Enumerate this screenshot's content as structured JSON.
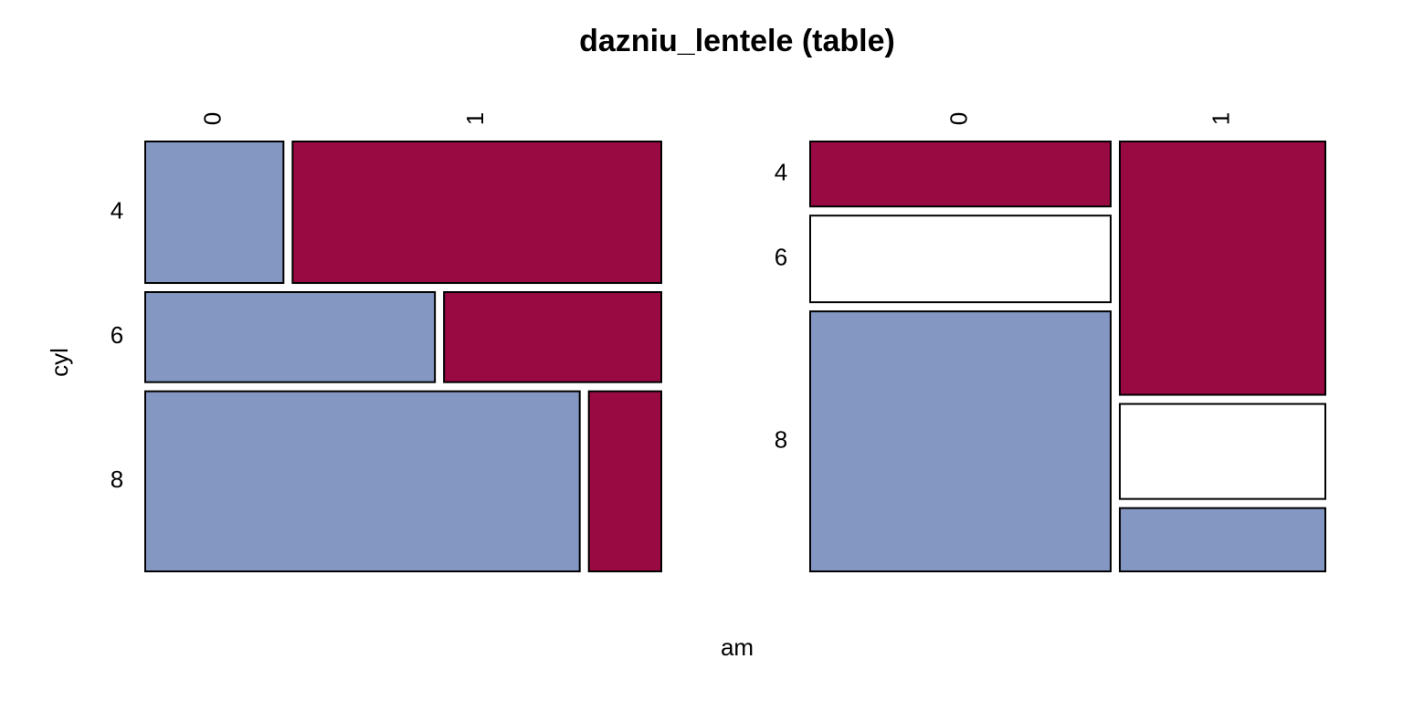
{
  "chart_data": {
    "type": "mosaic",
    "title": "dazniu_lentele (table)",
    "xlabel": "am",
    "ylabel": "cyl",
    "colors": {
      "first_class": "#8497c3",
      "second_class": "#990a42",
      "empty": "#ffffff"
    },
    "panels": [
      {
        "row_categories": [
          "4",
          "6",
          "8"
        ],
        "row_proportions": [
          0.34375,
          0.21875,
          0.4375
        ],
        "column_categories": [
          "0",
          "1"
        ],
        "cells": [
          {
            "row": "4",
            "am": "0",
            "share_within_row": 0.2727,
            "fill": "first_class"
          },
          {
            "row": "4",
            "am": "1",
            "share_within_row": 0.7273,
            "fill": "second_class"
          },
          {
            "row": "6",
            "am": "0",
            "share_within_row": 0.5714,
            "fill": "first_class"
          },
          {
            "row": "6",
            "am": "1",
            "share_within_row": 0.4286,
            "fill": "second_class"
          },
          {
            "row": "8",
            "am": "0",
            "share_within_row": 0.8571,
            "fill": "first_class"
          },
          {
            "row": "8",
            "am": "1",
            "share_within_row": 0.1429,
            "fill": "second_class"
          }
        ]
      },
      {
        "row_categories": [
          "4",
          "6",
          "8"
        ],
        "column_categories": [
          "0",
          "1"
        ],
        "column_proportions": [
          0.59375,
          0.40625
        ],
        "columns": [
          {
            "am": "0",
            "segments": [
              {
                "row": "4",
                "share": 0.1579,
                "fill": "second_class"
              },
              {
                "row": "6",
                "share": 0.2105,
                "fill": "empty"
              },
              {
                "row": "8",
                "share": 0.6316,
                "fill": "first_class"
              }
            ]
          },
          {
            "am": "1",
            "segments": [
              {
                "row": "4",
                "share": 0.6154,
                "fill": "second_class"
              },
              {
                "row": "6",
                "share": 0.2308,
                "fill": "empty"
              },
              {
                "row": "8",
                "share": 0.1538,
                "fill": "first_class"
              }
            ]
          }
        ]
      }
    ]
  }
}
